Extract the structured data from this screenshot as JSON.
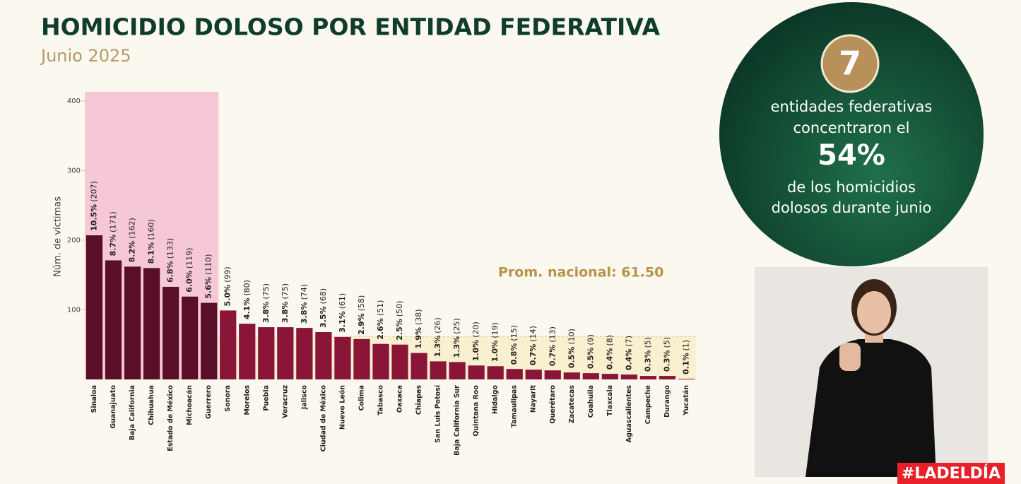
{
  "title": "HOMICIDIO DOLOSO POR ENTIDAD FEDERATIVA",
  "subtitle": "Junio 2025",
  "chart_data": {
    "type": "bar",
    "ylabel": "Núm. de víctimas",
    "categories": [
      "Sinaloa",
      "Guanajuato",
      "Baja California",
      "Chihuahua",
      "Estado de México",
      "Michoacán",
      "Guerrero",
      "Sonora",
      "Morelos",
      "Puebla",
      "Veracruz",
      "Jalisco",
      "Ciudad de México",
      "Nuevo León",
      "Colima",
      "Tabasco",
      "Oaxaca",
      "Chiapas",
      "San Luis Potosí",
      "Baja California Sur",
      "Quintana Roo",
      "Hidalgo",
      "Tamaulipas",
      "Nayarit",
      "Querétaro",
      "Zacatecas",
      "Coahuila",
      "Tlaxcala",
      "Aguascalientes",
      "Campeche",
      "Durango",
      "Yucatán"
    ],
    "values": [
      207,
      171,
      162,
      160,
      133,
      119,
      110,
      99,
      80,
      75,
      75,
      74,
      68,
      61,
      58,
      51,
      50,
      38,
      26,
      25,
      20,
      19,
      15,
      14,
      13,
      10,
      9,
      8,
      7,
      5,
      5,
      1
    ],
    "value_labels": [
      "(207)",
      "(171)",
      "(162)",
      "(160)",
      "(133)",
      "(119)",
      "(110)",
      "(99)",
      "(80)",
      "(75)",
      "(75)",
      "(74)",
      "(68)",
      "(61)",
      "(58)",
      "(51)",
      "(50)",
      "(38)",
      "(26)",
      "(25)",
      "(20)",
      "(19)",
      "(15)",
      "(14)",
      "(13)",
      "(10)",
      "(9)",
      "(8)",
      "(7)",
      "(5)",
      "(5)",
      "(1)"
    ],
    "share_labels": [
      "10.5%",
      "8.7%",
      "8.2%",
      "8.1%",
      "6.8%",
      "6.0%",
      "5.6%",
      "5.0%",
      "4.1%",
      "3.8%",
      "3.8%",
      "3.8%",
      "3.5%",
      "3.1%",
      "2.9%",
      "2.6%",
      "2.5%",
      "1.9%",
      "1.3%",
      "1.3%",
      "1.0%",
      "1.0%",
      "0.8%",
      "0.7%",
      "0.7%",
      "0.5%",
      "0.5%",
      "0.4%",
      "0.4%",
      "0.3%",
      "0.3%",
      "0.1%"
    ],
    "color": "#8a1538",
    "highlight_color": "#5a0f28",
    "highlight_count": 7,
    "average": 61.5,
    "average_label": "Prom. nacional: 61.50",
    "ylim": [
      0,
      413
    ],
    "yticks": [
      100,
      200,
      300,
      400
    ],
    "grid": false
  },
  "panel": {
    "count": "7",
    "line1": "entidades federativas",
    "line2": "concentraron el",
    "percent": "54%",
    "line3": "de los homicidios",
    "line4": "dolosos durante junio"
  },
  "badge": "#LADELDÍA"
}
